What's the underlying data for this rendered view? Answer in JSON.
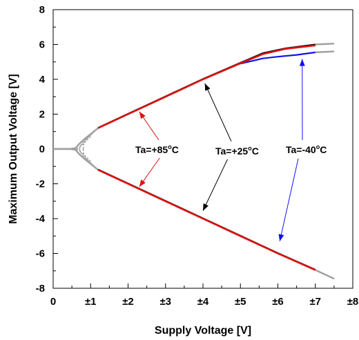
{
  "chart_data": {
    "type": "line",
    "title": "",
    "xlabel": "Supply Voltage [V]",
    "ylabel": "Maximum Output Voltage [V]",
    "xlim": [
      0,
      8
    ],
    "ylim": [
      -8,
      8
    ],
    "x_tick_labels": [
      "0",
      "±1",
      "±2",
      "±3",
      "±4",
      "±5",
      "±6",
      "±7",
      "±8"
    ],
    "y_tick_labels": [
      "8",
      "6",
      "4",
      "2",
      "0",
      "-2",
      "-4",
      "-6",
      "-8"
    ],
    "grid": false,
    "series": [
      {
        "name": "Ta=+85°C",
        "color": "#dd1111",
        "positive": {
          "x": [
            1.2,
            2,
            3,
            4,
            5,
            5.6,
            6.2,
            7
          ],
          "y": [
            1.2,
            2.0,
            3.0,
            4.0,
            4.92,
            5.45,
            5.75,
            5.95
          ]
        },
        "negative": {
          "x": [
            1.2,
            2,
            3,
            4,
            5,
            6,
            7
          ],
          "y": [
            -1.2,
            -2.0,
            -3.0,
            -4.0,
            -5.0,
            -6.0,
            -6.95
          ]
        }
      },
      {
        "name": "Ta=+25°C",
        "color": "#000000",
        "positive": {
          "x": [
            1.2,
            2,
            3,
            4,
            5,
            5.6,
            6.2,
            7
          ],
          "y": [
            1.22,
            2.02,
            3.02,
            4.02,
            4.95,
            5.5,
            5.78,
            6.0
          ]
        },
        "negative": {
          "x": [
            1.2,
            2,
            3,
            4,
            5,
            6,
            7
          ],
          "y": [
            -1.18,
            -1.98,
            -2.98,
            -3.98,
            -4.98,
            -5.98,
            -6.93
          ]
        }
      },
      {
        "name": "Ta=-40°C",
        "color": "#1010ee",
        "positive": {
          "x": [
            5,
            5.6,
            6,
            6.5,
            7
          ],
          "y": [
            4.9,
            5.2,
            5.3,
            5.4,
            5.55
          ]
        },
        "negative": {
          "x": [],
          "y": []
        }
      }
    ],
    "extension_color": "#a0a0a0",
    "annotations": [
      {
        "id": "a85",
        "text": "Ta=+85",
        "sup": "o",
        "tail": "C"
      },
      {
        "id": "a25",
        "text": "Ta=+25",
        "sup": "o",
        "tail": "C"
      },
      {
        "id": "am40",
        "text": "Ta=-40",
        "sup": "o",
        "tail": "C"
      }
    ]
  }
}
